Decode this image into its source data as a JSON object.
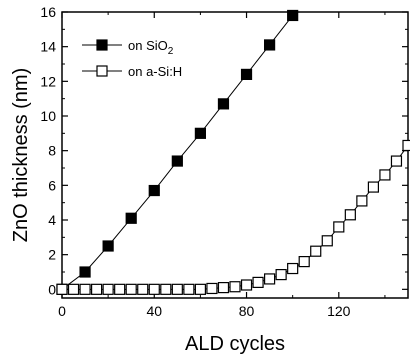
{
  "chart_data": {
    "type": "scatter",
    "xlabel": "ALD cycles",
    "ylabel": "ZnO thickness (nm)",
    "xlim": [
      0,
      150
    ],
    "ylim": [
      -0.5,
      16
    ],
    "xticks": [
      0,
      40,
      80,
      120
    ],
    "yticks": [
      0,
      2,
      4,
      6,
      8,
      10,
      12,
      14,
      16
    ],
    "xtick_labels": [
      "0",
      "40",
      "80",
      "120"
    ],
    "ytick_labels": [
      "0",
      "2",
      "4",
      "6",
      "8",
      "10",
      "12",
      "14",
      "16"
    ],
    "grid": false,
    "legend_position": "top-left",
    "series": [
      {
        "name": "on SiO2",
        "label_main": "on SiO",
        "label_sub": "2",
        "marker": "filled-square",
        "color": "#000000",
        "x": [
          0,
          10,
          20,
          30,
          40,
          50,
          60,
          70,
          80,
          90,
          100
        ],
        "y": [
          0.0,
          1.0,
          2.5,
          4.1,
          5.7,
          7.4,
          9.0,
          10.7,
          12.4,
          14.1,
          15.8
        ]
      },
      {
        "name": "on a-Si:H",
        "label_main": "on a-Si:H",
        "label_sub": "",
        "marker": "open-square",
        "color": "#000000",
        "x": [
          0,
          5,
          10,
          15,
          20,
          25,
          30,
          35,
          40,
          45,
          50,
          55,
          60,
          65,
          70,
          75,
          80,
          85,
          90,
          95,
          100,
          105,
          110,
          115,
          120,
          125,
          130,
          135,
          140,
          145,
          150
        ],
        "y": [
          0.0,
          0.0,
          0.0,
          0.0,
          0.0,
          0.0,
          0.0,
          0.0,
          0.0,
          0.0,
          0.0,
          0.0,
          0.0,
          0.05,
          0.1,
          0.15,
          0.25,
          0.4,
          0.6,
          0.85,
          1.2,
          1.6,
          2.2,
          2.8,
          3.6,
          4.3,
          5.1,
          5.9,
          6.6,
          7.4,
          8.3
        ]
      }
    ]
  }
}
